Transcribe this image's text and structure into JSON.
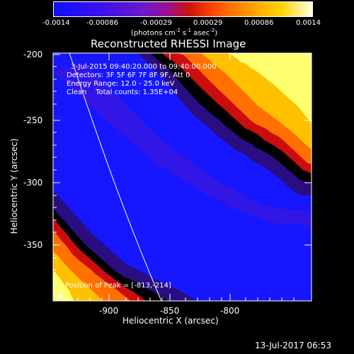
{
  "colorbar": {
    "tick_labels": [
      "-0.0014",
      "-0.00086",
      "-0.00029",
      "0.00029",
      "0.00086",
      "0.0014"
    ],
    "units_prefix": "(photons cm",
    "units_exp1": "-2",
    "units_mid": " s",
    "units_exp2": "-1",
    "units_mid2": " asec",
    "units_exp3": "-2",
    "units_suffix": ")",
    "colors": [
      "#1010ff",
      "#6a1acc",
      "#cc1111",
      "#ff7a00",
      "#ffd200",
      "#ffffe0"
    ]
  },
  "plot": {
    "title": "Reconstructed RHESSI Image",
    "xlabel": "Heliocentric X (arcsec)",
    "ylabel": "Heliocentric Y (arcsec)",
    "x_ticks": [
      "-900",
      "-850",
      "-800"
    ],
    "y_ticks": [
      "-200",
      "-250",
      "-300",
      "-350"
    ],
    "info_line1": "3-Jul-2015 09:40:20.000 to 09:40:00.000",
    "info_line2": "Detectors: 3F 5F 6F 7F 8F 9F, Att 0",
    "info_line3": "Energy Range: 12.0 - 25.0 keV",
    "info_line4": "Clean    Total counts: 1.35E+04",
    "peak_text": "Position of Peak = [-813,-214]"
  },
  "footer": {
    "timestamp": "13-Jul-2017 06:53"
  }
}
